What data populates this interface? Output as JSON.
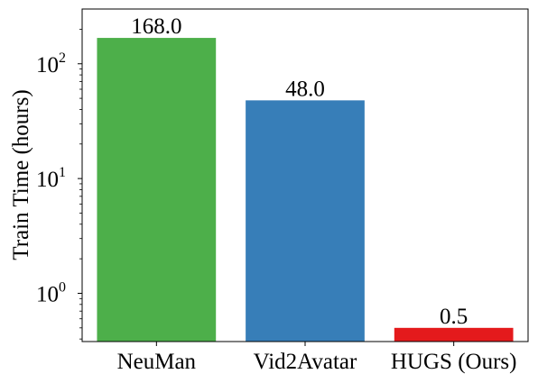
{
  "chart_data": {
    "type": "bar",
    "title": "",
    "xlabel": "",
    "ylabel": "Train Time (hours)",
    "yscale": "log",
    "ylim": [
      0.38,
      300
    ],
    "grid": false,
    "legend": "none",
    "y_ticks": [
      {
        "value": 1,
        "base": "10",
        "exp": "0"
      },
      {
        "value": 10,
        "base": "10",
        "exp": "1"
      },
      {
        "value": 100,
        "base": "10",
        "exp": "2"
      }
    ],
    "bars": [
      {
        "category": "NeuMan",
        "value": 168.0,
        "value_label": "168.0",
        "color": "#4daf4a"
      },
      {
        "category": "Vid2Avatar",
        "value": 48.0,
        "value_label": "48.0",
        "color": "#377eb8"
      },
      {
        "category": "HUGS (Ours)",
        "value": 0.5,
        "value_label": "0.5",
        "color": "#e41a1c"
      }
    ]
  }
}
